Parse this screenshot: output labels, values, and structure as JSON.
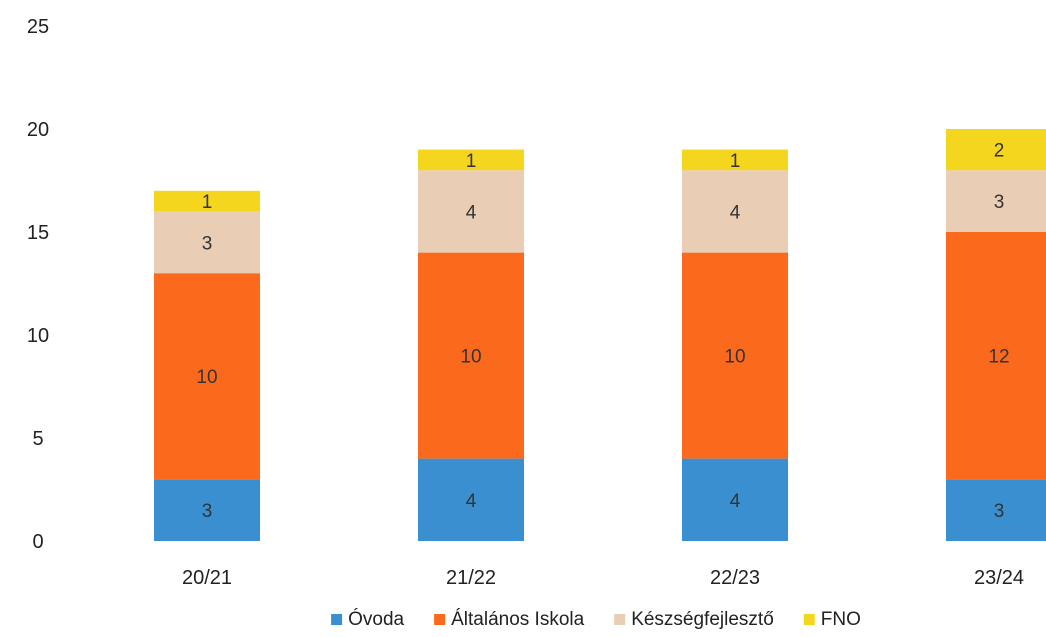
{
  "chart_data": {
    "type": "bar",
    "stacked": true,
    "categories": [
      "20/21",
      "21/22",
      "22/23",
      "23/24"
    ],
    "series": [
      {
        "name": "Óvoda",
        "values": [
          3,
          4,
          4,
          3
        ],
        "color": "#3a8fd0"
      },
      {
        "name": "Általános Iskola",
        "values": [
          10,
          10,
          10,
          12
        ],
        "color": "#fb6a1c"
      },
      {
        "name": "Készségfejlesztő",
        "values": [
          3,
          4,
          4,
          3
        ],
        "color": "#e9cdb4"
      },
      {
        "name": "FNO",
        "values": [
          1,
          1,
          1,
          2
        ],
        "color": "#f5d61f"
      }
    ],
    "title": "",
    "xlabel": "",
    "ylabel": "",
    "ylim": [
      0,
      25
    ],
    "yticks": [
      "0",
      "5",
      "10",
      "15",
      "20",
      "25"
    ],
    "grid": false,
    "legend_position": "bottom",
    "data_labels": true
  }
}
